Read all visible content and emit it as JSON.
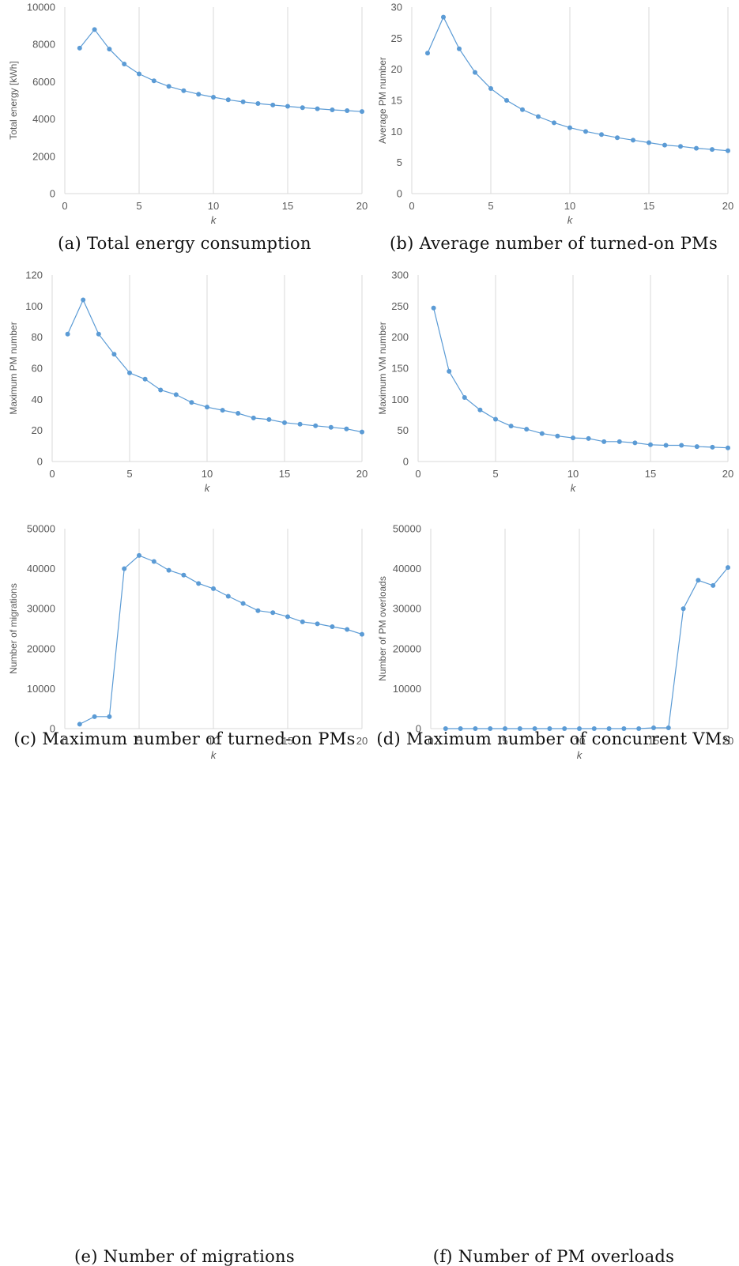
{
  "chart_data": [
    {
      "id": "a",
      "type": "line",
      "caption": "(a) Total energy consumption",
      "xlabel": "k",
      "ylabel": "Total energy [kWh]",
      "xlim": [
        0,
        20
      ],
      "xticks": [
        0,
        5,
        10,
        15,
        20
      ],
      "ylim": [
        0,
        10000
      ],
      "yticks": [
        0,
        2000,
        4000,
        6000,
        8000,
        10000
      ],
      "grid": "vertical",
      "x": [
        1,
        2,
        3,
        4,
        5,
        6,
        7,
        8,
        9,
        10,
        11,
        12,
        13,
        14,
        15,
        16,
        17,
        18,
        19,
        20
      ],
      "values": [
        7800,
        8800,
        7750,
        6950,
        6420,
        6050,
        5750,
        5520,
        5330,
        5170,
        5030,
        4920,
        4830,
        4750,
        4680,
        4610,
        4550,
        4490,
        4450,
        4400
      ]
    },
    {
      "id": "b",
      "type": "line",
      "caption": "(b) Average number of turned-on PMs",
      "xlabel": "k",
      "ylabel": "Average PM number",
      "xlim": [
        0,
        20
      ],
      "xticks": [
        0,
        5,
        10,
        15,
        20
      ],
      "ylim": [
        0,
        30
      ],
      "yticks": [
        0,
        5,
        10,
        15,
        20,
        25,
        30
      ],
      "grid": "vertical",
      "x": [
        1,
        2,
        3,
        4,
        5,
        6,
        7,
        8,
        9,
        10,
        11,
        12,
        13,
        14,
        15,
        16,
        17,
        18,
        19,
        20
      ],
      "values": [
        22.6,
        28.4,
        23.3,
        19.5,
        16.9,
        15.0,
        13.5,
        12.4,
        11.4,
        10.6,
        10.0,
        9.5,
        9.0,
        8.6,
        8.2,
        7.8,
        7.6,
        7.3,
        7.1,
        6.9
      ]
    },
    {
      "id": "c",
      "type": "line",
      "caption": "(c) Maximum number of turned-on PMs",
      "xlabel": "k",
      "ylabel": "Maximum PM number",
      "xlim": [
        0,
        20
      ],
      "xticks": [
        0,
        5,
        10,
        15,
        20
      ],
      "ylim": [
        0,
        120
      ],
      "yticks": [
        0,
        20,
        40,
        60,
        80,
        100,
        120
      ],
      "grid": "vertical",
      "x": [
        1,
        2,
        3,
        4,
        5,
        6,
        7,
        8,
        9,
        10,
        11,
        12,
        13,
        14,
        15,
        16,
        17,
        18,
        19,
        20
      ],
      "values": [
        82,
        104,
        82,
        69,
        57,
        53,
        46,
        43,
        38,
        35,
        33,
        31,
        28,
        27,
        25,
        24,
        23,
        22,
        21,
        19
      ]
    },
    {
      "id": "d",
      "type": "line",
      "caption": "(d) Maximum number of concurrent VMs",
      "xlabel": "k",
      "ylabel": "Maximum VM number",
      "xlim": [
        0,
        20
      ],
      "xticks": [
        0,
        5,
        10,
        15,
        20
      ],
      "ylim": [
        0,
        300
      ],
      "yticks": [
        0,
        50,
        100,
        150,
        200,
        250,
        300
      ],
      "grid": "vertical",
      "x": [
        1,
        2,
        3,
        4,
        5,
        6,
        7,
        8,
        9,
        10,
        11,
        12,
        13,
        14,
        15,
        16,
        17,
        18,
        19,
        20
      ],
      "values": [
        247,
        145,
        103,
        83,
        68,
        57,
        52,
        45,
        41,
        38,
        37,
        32,
        32,
        30,
        27,
        26,
        26,
        24,
        23,
        22
      ]
    },
    {
      "id": "e",
      "type": "line",
      "caption": "(e) Number of migrations",
      "xlabel": "k",
      "ylabel": "Number of migrations",
      "xlim": [
        0,
        20
      ],
      "xticks": [
        0,
        5,
        10,
        15,
        20
      ],
      "ylim": [
        0,
        50000
      ],
      "yticks": [
        0,
        10000,
        20000,
        30000,
        40000,
        50000
      ],
      "grid": "vertical",
      "x": [
        1,
        2,
        3,
        4,
        5,
        6,
        7,
        8,
        9,
        10,
        11,
        12,
        13,
        14,
        15,
        16,
        17,
        18,
        19,
        20
      ],
      "values": [
        1100,
        3000,
        3000,
        40000,
        43300,
        41800,
        39600,
        38400,
        36300,
        35000,
        33100,
        31300,
        29500,
        29000,
        28000,
        26700,
        26200,
        25500,
        24800,
        23600
      ]
    },
    {
      "id": "f",
      "type": "line",
      "caption": "(f) Number of PM overloads",
      "xlabel": "k",
      "ylabel": "Number of PM overloads",
      "xlim": [
        0,
        20
      ],
      "xticks": [
        0,
        5,
        10,
        15,
        20
      ],
      "ylim": [
        0,
        50000
      ],
      "yticks": [
        0,
        10000,
        20000,
        30000,
        40000,
        50000
      ],
      "grid": "vertical",
      "x": [
        1,
        2,
        3,
        4,
        5,
        6,
        7,
        8,
        9,
        10,
        11,
        12,
        13,
        14,
        15,
        16,
        17,
        18,
        19,
        20
      ],
      "values": [
        0,
        0,
        0,
        0,
        0,
        0,
        0,
        0,
        0,
        0,
        0,
        0,
        0,
        0,
        200,
        200,
        30000,
        37100,
        35800,
        40300
      ]
    }
  ]
}
